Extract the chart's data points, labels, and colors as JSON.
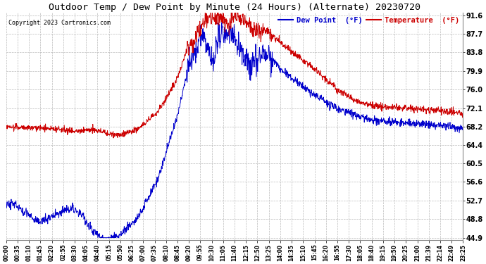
{
  "title": "Outdoor Temp / Dew Point by Minute (24 Hours) (Alternate) 20230720",
  "copyright": "Copyright 2023 Cartronics.com",
  "ylabel_right_ticks": [
    44.9,
    48.8,
    52.7,
    56.6,
    60.5,
    64.4,
    68.2,
    72.1,
    76.0,
    79.9,
    83.8,
    87.7,
    91.6
  ],
  "ymin": 44.9,
  "ymax": 91.6,
  "bg_color": "#ffffff",
  "grid_color": "#bbbbbb",
  "dew_point_color": "#0000cc",
  "temp_color": "#cc0000",
  "legend_dew_label": "Dew Point  (°F)",
  "legend_temp_label": "Temperature  (°F)",
  "legend_dew_color": "#0000cc",
  "legend_temp_color": "#cc0000",
  "x_tick_labels": [
    "00:00",
    "00:35",
    "01:10",
    "01:45",
    "02:20",
    "02:55",
    "03:30",
    "04:05",
    "04:40",
    "05:15",
    "05:50",
    "06:25",
    "07:00",
    "07:35",
    "08:10",
    "08:45",
    "09:20",
    "09:55",
    "10:30",
    "11:05",
    "11:40",
    "12:15",
    "12:50",
    "13:25",
    "14:00",
    "14:35",
    "15:10",
    "15:45",
    "16:20",
    "16:55",
    "17:30",
    "18:05",
    "18:40",
    "19:15",
    "19:50",
    "20:25",
    "21:00",
    "21:39",
    "22:14",
    "22:49",
    "23:25"
  ]
}
